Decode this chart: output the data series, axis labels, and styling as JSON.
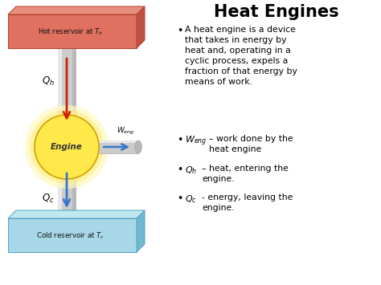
{
  "title": "Heat Engines",
  "bg_color": "#ffffff",
  "hot_reservoir_label": "Hot reservoir at $T_h$",
  "cold_reservoir_label": "Cold reservoir at $T_c$",
  "engine_label": "Engine",
  "hot_front": "#e07060",
  "hot_top": "#e89080",
  "hot_side": "#c05040",
  "cold_front": "#a8d8e8",
  "cold_top": "#c0e8f0",
  "cold_side": "#70b8d0",
  "engine_fill": "#ffe84a",
  "engine_glow": "#fff4a0",
  "pipe_fill": "#cccccc",
  "pipe_light": "#e8e8e8",
  "pipe_dark": "#aaaaaa",
  "arrow_hot": "#cc2200",
  "arrow_cold": "#3377cc",
  "text_color": "#000000",
  "dim_color": "#444444"
}
